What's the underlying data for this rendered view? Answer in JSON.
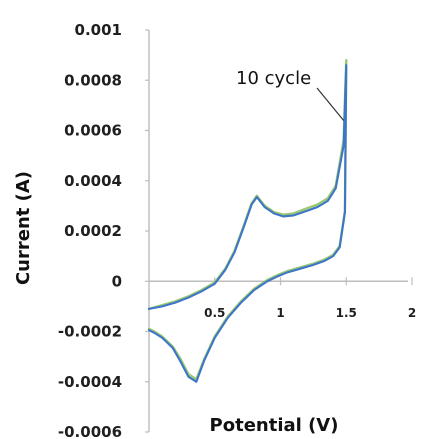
{
  "chart_data": {
    "type": "scatter",
    "title": "",
    "xlabel": "Potential (V)",
    "ylabel": "Current (A)",
    "xlim": [
      0,
      2
    ],
    "ylim": [
      -0.0006,
      0.001
    ],
    "grid": false,
    "legend": "none",
    "xticks": [
      "0.5",
      "1",
      "1.5",
      "2"
    ],
    "yticks": [
      "0.001",
      "0.0008",
      "0.0006",
      "0.0004",
      "0.0002",
      "0",
      "-0.0002",
      "-0.0004",
      "-0.0006"
    ],
    "annotation": {
      "text": "10 cycle",
      "x": 1.48,
      "y": 0.00064
    },
    "series": [
      {
        "color": "#88c057",
        "x": [
          0.0,
          0.1,
          0.2,
          0.3,
          0.4,
          0.5,
          0.58,
          0.65,
          0.72,
          0.78,
          0.82,
          0.88,
          0.95,
          1.02,
          1.1,
          1.2,
          1.28,
          1.36,
          1.42,
          1.48,
          1.5,
          1.49,
          1.45,
          1.4,
          1.33,
          1.25,
          1.15,
          1.05,
          0.98,
          0.9,
          0.8,
          0.7,
          0.6,
          0.5,
          0.42,
          0.36,
          0.3,
          0.24,
          0.18,
          0.1,
          0.04,
          0.0
        ],
        "y": [
          -0.00011,
          -9.5e-05,
          -8e-05,
          -6e-05,
          -3.5e-05,
          -5e-06,
          5e-05,
          0.00012,
          0.00022,
          0.00031,
          0.00034,
          0.0003,
          0.000275,
          0.000265,
          0.00027,
          0.00029,
          0.000305,
          0.00033,
          0.00038,
          0.00056,
          0.00088,
          0.00028,
          0.00014,
          0.000105,
          8.5e-05,
          7e-05,
          5.5e-05,
          4e-05,
          2.5e-05,
          5e-06,
          -3e-05,
          -8e-05,
          -0.00014,
          -0.00022,
          -0.00031,
          -0.00039,
          -0.00037,
          -0.00031,
          -0.00026,
          -0.00022,
          -0.0002,
          -0.00019
        ]
      },
      {
        "color": "#3d75c8",
        "x": [
          0.0,
          0.1,
          0.2,
          0.3,
          0.4,
          0.5,
          0.58,
          0.65,
          0.72,
          0.78,
          0.82,
          0.88,
          0.95,
          1.02,
          1.1,
          1.2,
          1.28,
          1.36,
          1.42,
          1.48,
          1.5,
          1.49,
          1.45,
          1.4,
          1.33,
          1.25,
          1.15,
          1.05,
          0.98,
          0.9,
          0.8,
          0.7,
          0.6,
          0.5,
          0.42,
          0.36,
          0.3,
          0.24,
          0.18,
          0.1,
          0.04,
          0.0
        ],
        "y": [
          -0.00011,
          -0.0001,
          -8.5e-05,
          -6.5e-05,
          -4e-05,
          -1e-05,
          4.5e-05,
          0.000115,
          0.000215,
          0.000305,
          0.000335,
          0.000295,
          0.00027,
          0.000258,
          0.000262,
          0.00028,
          0.000295,
          0.00032,
          0.00037,
          0.00054,
          0.00086,
          0.000275,
          0.000135,
          0.0001,
          8e-05,
          6.5e-05,
          5e-05,
          3.5e-05,
          2e-05,
          0.0,
          -3.5e-05,
          -8.5e-05,
          -0.000145,
          -0.000225,
          -0.000315,
          -0.0004,
          -0.00038,
          -0.00032,
          -0.000265,
          -0.000225,
          -0.000205,
          -0.000195
        ]
      }
    ]
  }
}
